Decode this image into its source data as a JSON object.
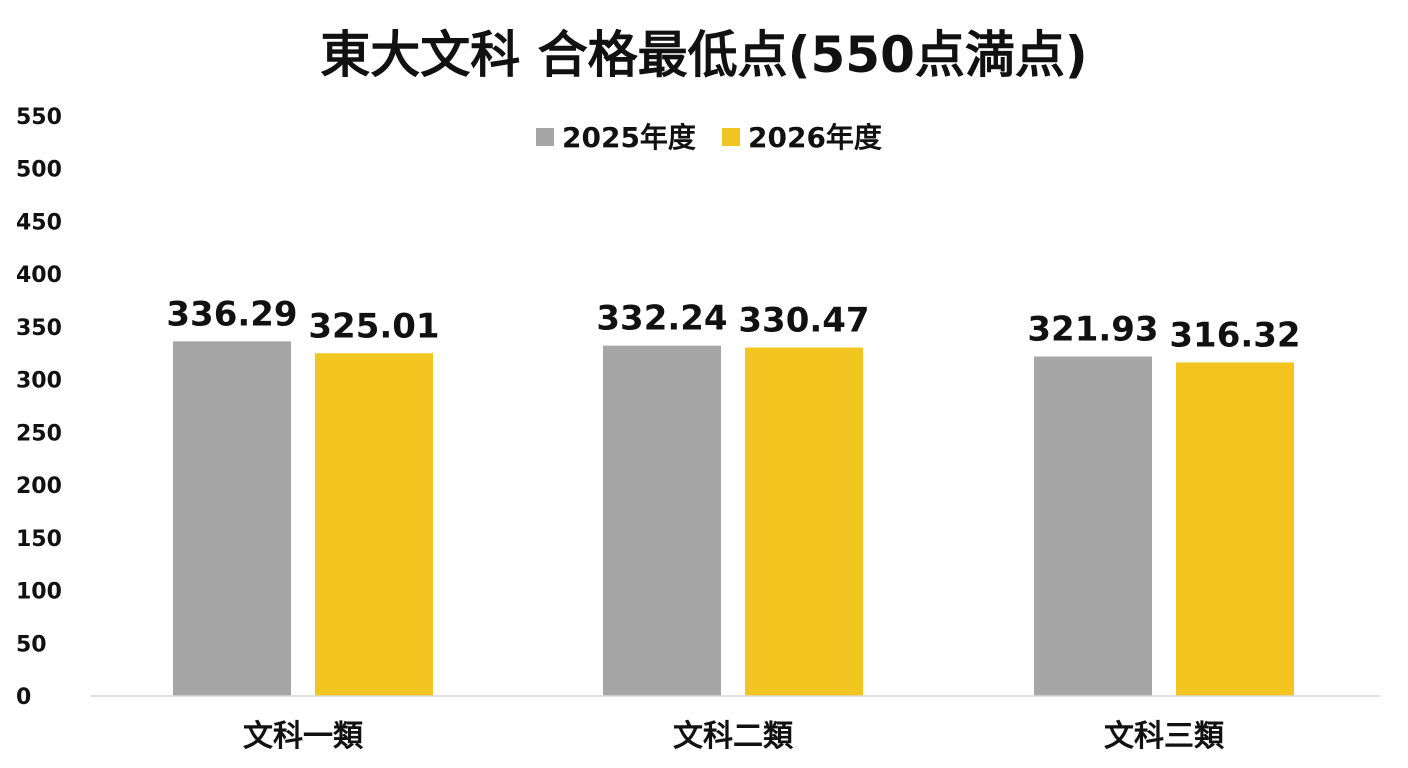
{
  "chart_data": {
    "type": "bar",
    "title": "東大文科 合格最低点(550点満点)",
    "categories": [
      "文科一類",
      "文科二類",
      "文科三類"
    ],
    "series": [
      {
        "name": "2025年度",
        "color": "#a6a6a6",
        "values": [
          336.29,
          332.24,
          321.93
        ],
        "labels": [
          "336.29",
          "332.24",
          "321.93"
        ]
      },
      {
        "name": "2026年度",
        "color": "#f2c520",
        "values": [
          325.01,
          330.47,
          316.32
        ],
        "labels": [
          "325.01",
          "330.47",
          "316.32"
        ]
      }
    ],
    "ylim": [
      0,
      550
    ],
    "yticks": [
      0,
      50,
      100,
      150,
      200,
      250,
      300,
      350,
      400,
      450,
      500,
      550
    ],
    "ytick_labels": [
      "0",
      "50",
      "100",
      "150",
      "200",
      "250",
      "300",
      "350",
      "400",
      "450",
      "500",
      "550"
    ],
    "xlabel": "",
    "ylabel": "",
    "grid": false,
    "legend_position": "top-center",
    "data_labels": true
  }
}
